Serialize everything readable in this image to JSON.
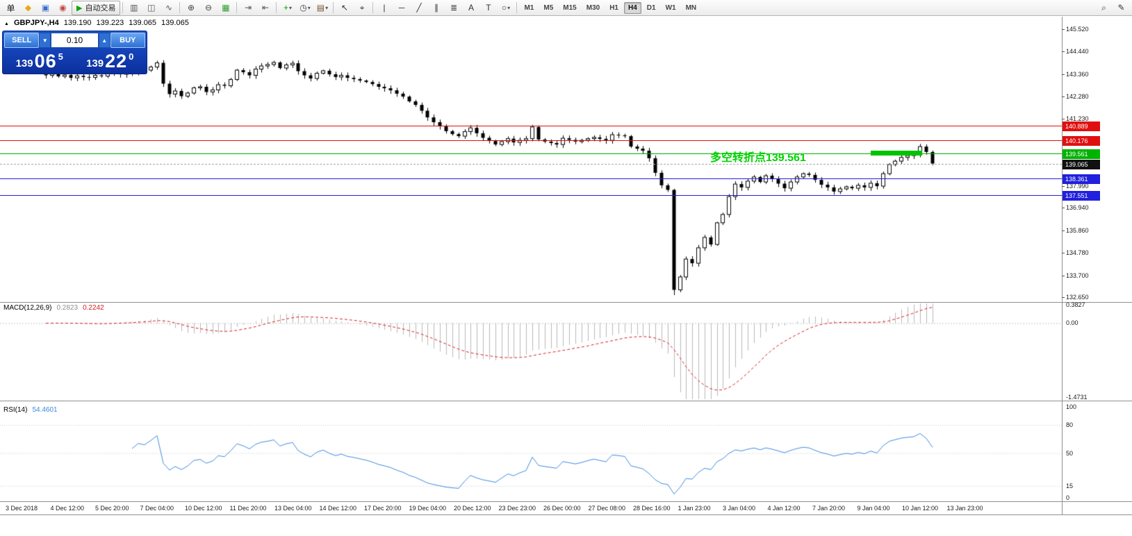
{
  "toolbar": {
    "timeframes": [
      "M1",
      "M5",
      "M15",
      "M30",
      "H1",
      "H4",
      "D1",
      "W1",
      "MN"
    ],
    "active_timeframe": "H4",
    "items": [
      {
        "n": "orders-icon",
        "g": "单",
        "c": "#222222"
      },
      {
        "n": "new-order-icon",
        "g": "◆",
        "c": "#e8a818"
      },
      {
        "n": "profiles-icon",
        "g": "▣",
        "c": "#3a6ed0"
      },
      {
        "n": "market-watch-icon",
        "g": "◉",
        "c": "#c04848"
      },
      {
        "n": "auto-trading-button",
        "g": "▶",
        "c": "#00a800",
        "label": "自动交易",
        "boxed": true
      },
      {
        "sep": true
      },
      {
        "n": "bar-chart-type-icon",
        "g": "▥",
        "c": "#555555"
      },
      {
        "n": "candlestick-chart-type-icon",
        "g": "◫",
        "c": "#555555"
      },
      {
        "n": "line-chart-type-icon",
        "g": "∿",
        "c": "#555555"
      },
      {
        "sep": true
      },
      {
        "n": "zoom-in-icon",
        "g": "⊕",
        "c": "#444444"
      },
      {
        "n": "zoom-out-icon",
        "g": "⊖",
        "c": "#444444"
      },
      {
        "n": "tile-windows-icon",
        "g": "▦",
        "c": "#2f9e2f"
      },
      {
        "sep": true
      },
      {
        "n": "auto-scroll-icon",
        "g": "⇥",
        "c": "#555555"
      },
      {
        "n": "chart-shift-icon",
        "g": "⇤",
        "c": "#555555"
      },
      {
        "sep": true
      },
      {
        "n": "indicators-icon",
        "g": "+",
        "c": "#00a000",
        "caret": true
      },
      {
        "n": "periods-icon",
        "g": "◷",
        "c": "#444444",
        "caret": true
      },
      {
        "n": "templates-icon",
        "g": "▤",
        "c": "#7a5230",
        "caret": true
      },
      {
        "sep": true
      },
      {
        "n": "cursor-icon",
        "g": "↖",
        "c": "#333333"
      },
      {
        "n": "crosshair-icon",
        "g": "⌖",
        "c": "#333333"
      },
      {
        "sep": true
      },
      {
        "n": "vertical-line-icon",
        "g": "|",
        "c": "#333333"
      },
      {
        "n": "horizontal-line-icon",
        "g": "─",
        "c": "#333333"
      },
      {
        "n": "trendline-icon",
        "g": "╱",
        "c": "#333333"
      },
      {
        "n": "channel-icon",
        "g": "∥",
        "c": "#333333"
      },
      {
        "n": "fibonacci-icon",
        "g": "≣",
        "c": "#333333"
      },
      {
        "n": "text-icon",
        "g": "A",
        "c": "#333333"
      },
      {
        "n": "label-icon",
        "g": "T",
        "c": "#333333"
      },
      {
        "n": "shapes-icon",
        "g": "○",
        "c": "#333333",
        "caret": true
      },
      {
        "sep": true
      },
      {
        "timeframes": true
      },
      {
        "spacer": true
      },
      {
        "n": "search-icon",
        "g": "⌕",
        "c": "#333333"
      },
      {
        "n": "edit-icon",
        "g": "✎",
        "c": "#333333"
      }
    ]
  },
  "chart_header": {
    "marker": "▲",
    "symbol": "GBPJPY-,H4",
    "open": "139.190",
    "high": "139.223",
    "low": "139.065",
    "close": "139.065"
  },
  "trade_panel": {
    "sell_label": "SELL",
    "buy_label": "BUY",
    "volume": "0.10",
    "sell_prefix": "139",
    "sell_big": "06",
    "sell_sup": "5",
    "buy_prefix": "139",
    "buy_big": "22",
    "buy_sup": "0"
  },
  "annotation": {
    "text": "多空转折点139.561",
    "color": "#00d300"
  },
  "hlines": [
    {
      "price": 140.889,
      "label": "140.889",
      "color": "#e01010"
    },
    {
      "price": 140.176,
      "label": "140.176",
      "color": "#e01010"
    },
    {
      "price": 139.561,
      "label": "139.561",
      "color": "#00b300"
    },
    {
      "price": 138.361,
      "label": "138.361",
      "color": "#2020dd"
    },
    {
      "price": 137.551,
      "label": "137.551",
      "color": "#2020dd"
    }
  ],
  "current_price": {
    "price": 139.065,
    "label": "139.065",
    "badge_color": "#111111"
  },
  "price_axis": {
    "labels": [
      "145.520",
      "144.440",
      "143.360",
      "142.280",
      "141.230",
      "137.990",
      "136.940",
      "135.860",
      "134.780",
      "133.700",
      "132.650"
    ]
  },
  "macd": {
    "label": "MACD(12,26,9)",
    "main_value": "0.2823",
    "signal_value": "0.2242",
    "scale_max": "0.3827",
    "scale_zero": "0.00",
    "scale_min": "-1.4731"
  },
  "rsi": {
    "label": "RSI(14)",
    "value": "54.4601",
    "scale_labels": [
      "100",
      "80",
      "50",
      "15",
      "0"
    ]
  },
  "time_axis": {
    "labels": [
      "3 Dec 2018",
      "4 Dec 12:00",
      "5 Dec 20:00",
      "7 Dec 04:00",
      "10 Dec 12:00",
      "11 Dec 20:00",
      "13 Dec 04:00",
      "14 Dec 12:00",
      "17 Dec 20:00",
      "19 Dec 04:00",
      "20 Dec 12:00",
      "23 Dec 23:00",
      "26 Dec 00:00",
      "27 Dec 08:00",
      "28 Dec 16:00",
      "1 Jan 23:00",
      "3 Jan 04:00",
      "4 Jan 12:00",
      "7 Jan 20:00",
      "9 Jan 04:00",
      "10 Jan 12:00",
      "13 Jan 23:00"
    ]
  },
  "chart_data": [
    {
      "type": "candlestick",
      "title": "GBPJPY- H4",
      "ylim": [
        132.45,
        146.05
      ],
      "closes": [
        143.3,
        143.38,
        143.25,
        143.32,
        143.18,
        143.28,
        143.22,
        143.2,
        143.3,
        143.26,
        143.4,
        143.45,
        143.35,
        143.5,
        143.42,
        143.58,
        143.55,
        143.7,
        143.9,
        142.9,
        142.4,
        142.55,
        142.3,
        142.45,
        142.7,
        142.75,
        142.5,
        142.6,
        142.85,
        142.8,
        143.1,
        143.55,
        143.45,
        143.3,
        143.6,
        143.75,
        143.82,
        143.92,
        143.65,
        143.8,
        143.88,
        143.5,
        143.3,
        143.15,
        143.4,
        143.52,
        143.35,
        143.22,
        143.3,
        143.18,
        143.12,
        143.05,
        142.98,
        142.88,
        142.75,
        142.68,
        142.58,
        142.42,
        142.28,
        142.05,
        141.88,
        141.6,
        141.28,
        141.05,
        140.85,
        140.62,
        140.48,
        140.38,
        140.6,
        140.78,
        140.52,
        140.3,
        140.15,
        139.98,
        140.12,
        140.26,
        140.08,
        140.18,
        140.26,
        140.82,
        140.22,
        140.12,
        140.05,
        139.98,
        140.28,
        140.2,
        140.12,
        140.18,
        140.26,
        140.32,
        140.25,
        140.18,
        140.45,
        140.42,
        140.38,
        139.88,
        139.78,
        139.68,
        139.32,
        138.62,
        138.02,
        137.8,
        133.0,
        133.62,
        134.48,
        134.28,
        135.02,
        135.52,
        135.18,
        136.22,
        136.62,
        137.48,
        138.08,
        137.92,
        138.22,
        138.42,
        138.18,
        138.48,
        138.32,
        138.1,
        137.88,
        138.18,
        138.42,
        138.58,
        138.52,
        138.28,
        138.05,
        137.92,
        137.72,
        137.85,
        137.95,
        137.88,
        138.02,
        137.92,
        138.12,
        137.98,
        138.58,
        139.02,
        139.18,
        139.36,
        139.45,
        139.52,
        139.88,
        139.62,
        139.065
      ],
      "crash_index": 102,
      "crash_low": 132.75,
      "bull_color": "#ffffff",
      "bear_color": "#000000"
    },
    {
      "type": "bar",
      "name": "MACD(12,26,9)",
      "fast": 12,
      "slow": 26,
      "signal": 9,
      "ylim": [
        -1.4731,
        0.3827
      ],
      "histogram_color": "#b8b8b8",
      "signal_color": "#d42020",
      "current_main": 0.2823,
      "current_signal": 0.2242,
      "derived_from": "candlestick closes"
    },
    {
      "type": "line",
      "name": "RSI(14)",
      "period": 14,
      "ylim": [
        0,
        100
      ],
      "levels": [
        80,
        50,
        15
      ],
      "line_color": "#3c8ae0",
      "current": 54.4601,
      "derived_from": "candlestick closes"
    }
  ]
}
